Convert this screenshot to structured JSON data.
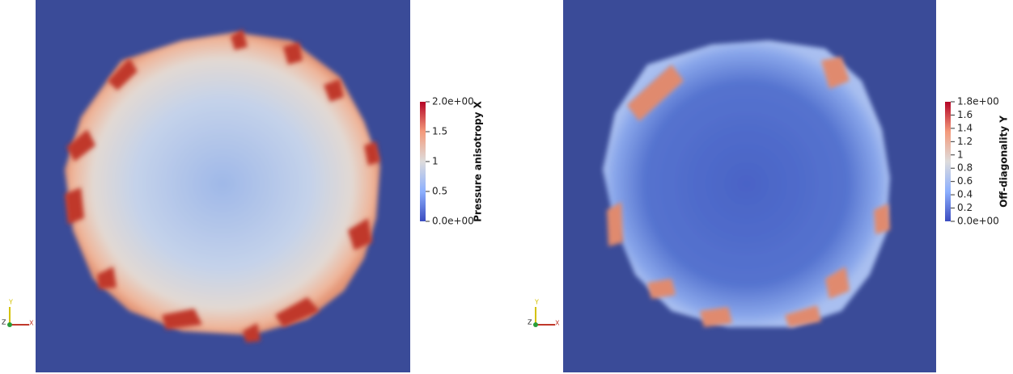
{
  "panels": [
    {
      "colorbar": {
        "title": "Pressure anisotropy X",
        "ticks": [
          "0.0e+00",
          "0.5",
          "1",
          "1.5",
          "2.0e+00"
        ]
      },
      "axes": {
        "y": "Y",
        "z": "Z",
        "x": "X"
      }
    },
    {
      "colorbar": {
        "title": "Off-diagonality Y",
        "ticks": [
          "0.0e+00",
          "0.2",
          "0.4",
          "0.6",
          "0.8",
          "1",
          "1.2",
          "1.4",
          "1.6",
          "1.8e+00"
        ]
      },
      "axes": {
        "y": "Y",
        "z": "Z",
        "x": "X"
      }
    }
  ]
}
